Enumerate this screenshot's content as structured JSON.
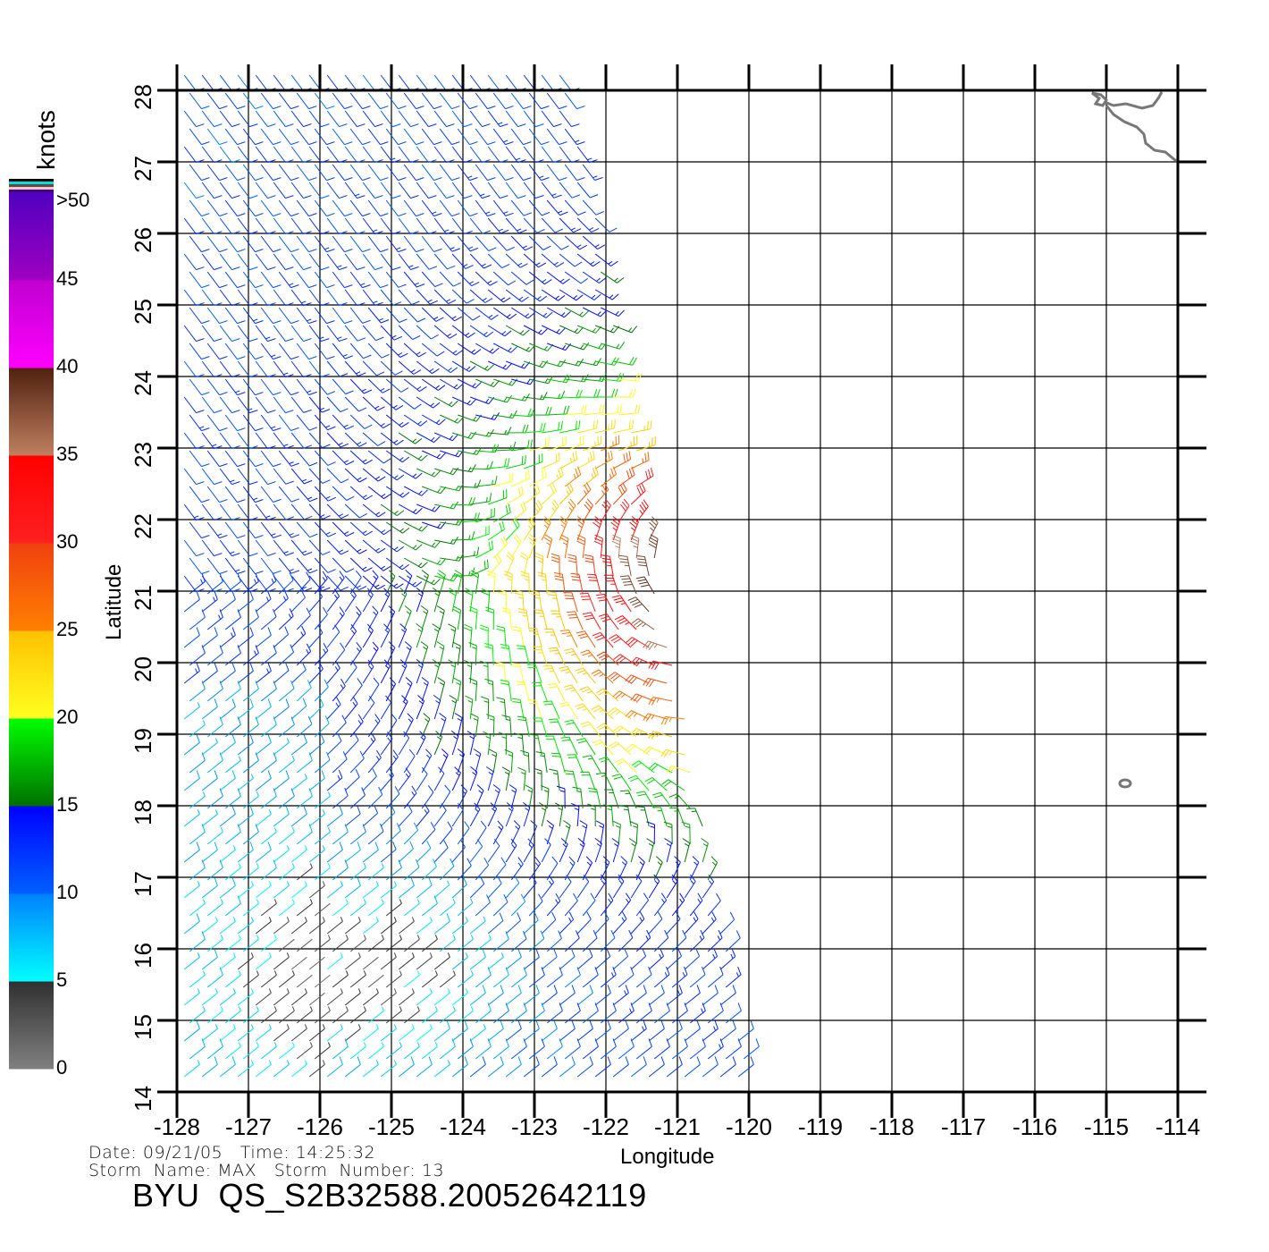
{
  "plot": {
    "xlabel": "Longitude",
    "ylabel": "Latitude",
    "lon_ticks": [
      "-128",
      "-127",
      "-126",
      "-125",
      "-124",
      "-123",
      "-122",
      "-121",
      "-120",
      "-119",
      "-118",
      "-117",
      "-116",
      "-115",
      "-114"
    ],
    "lat_ticks": [
      "28",
      "27",
      "26",
      "25",
      "24",
      "23",
      "22",
      "21",
      "20",
      "19",
      "18",
      "17",
      "16",
      "15",
      "14"
    ],
    "lon_range": [
      -128,
      -114
    ],
    "lat_range": [
      14,
      28
    ]
  },
  "colorbar": {
    "title": "knots",
    "labels": [
      ">50",
      "45",
      "40",
      "35",
      "30",
      "25",
      "20",
      "15",
      "10",
      "5",
      "0"
    ],
    "stops": [
      {
        "kt": 0,
        "color": "#808080"
      },
      {
        "kt": 5,
        "color": "#303030"
      },
      {
        "kt": 5,
        "color": "#00ffff"
      },
      {
        "kt": 10,
        "color": "#0080ff"
      },
      {
        "kt": 10,
        "color": "#0060ff"
      },
      {
        "kt": 15,
        "color": "#0000ff"
      },
      {
        "kt": 15,
        "color": "#007000"
      },
      {
        "kt": 20,
        "color": "#00ff00"
      },
      {
        "kt": 20,
        "color": "#ffff20"
      },
      {
        "kt": 25,
        "color": "#ffc000"
      },
      {
        "kt": 25,
        "color": "#ff8000"
      },
      {
        "kt": 30,
        "color": "#f04010"
      },
      {
        "kt": 30,
        "color": "#ff2020"
      },
      {
        "kt": 35,
        "color": "#ff0000"
      },
      {
        "kt": 35,
        "color": "#c08060"
      },
      {
        "kt": 40,
        "color": "#502010"
      },
      {
        "kt": 40,
        "color": "#ff00ff"
      },
      {
        "kt": 45,
        "color": "#c000d0"
      },
      {
        "kt": 45,
        "color": "#a000c0"
      },
      {
        "kt": 50,
        "color": "#5000c0"
      }
    ],
    "top_swatches": [
      "#000000",
      "#00e0e0",
      "#505050",
      "#ffc0c0",
      "#400080"
    ]
  },
  "footer": {
    "date_line": "Date: 09/21/05   Time: 14:25:32",
    "storm_line": "Storm  Name: MAX   Storm  Number: 13",
    "title": "BYU  QS_S2B32588.20052642119"
  }
}
